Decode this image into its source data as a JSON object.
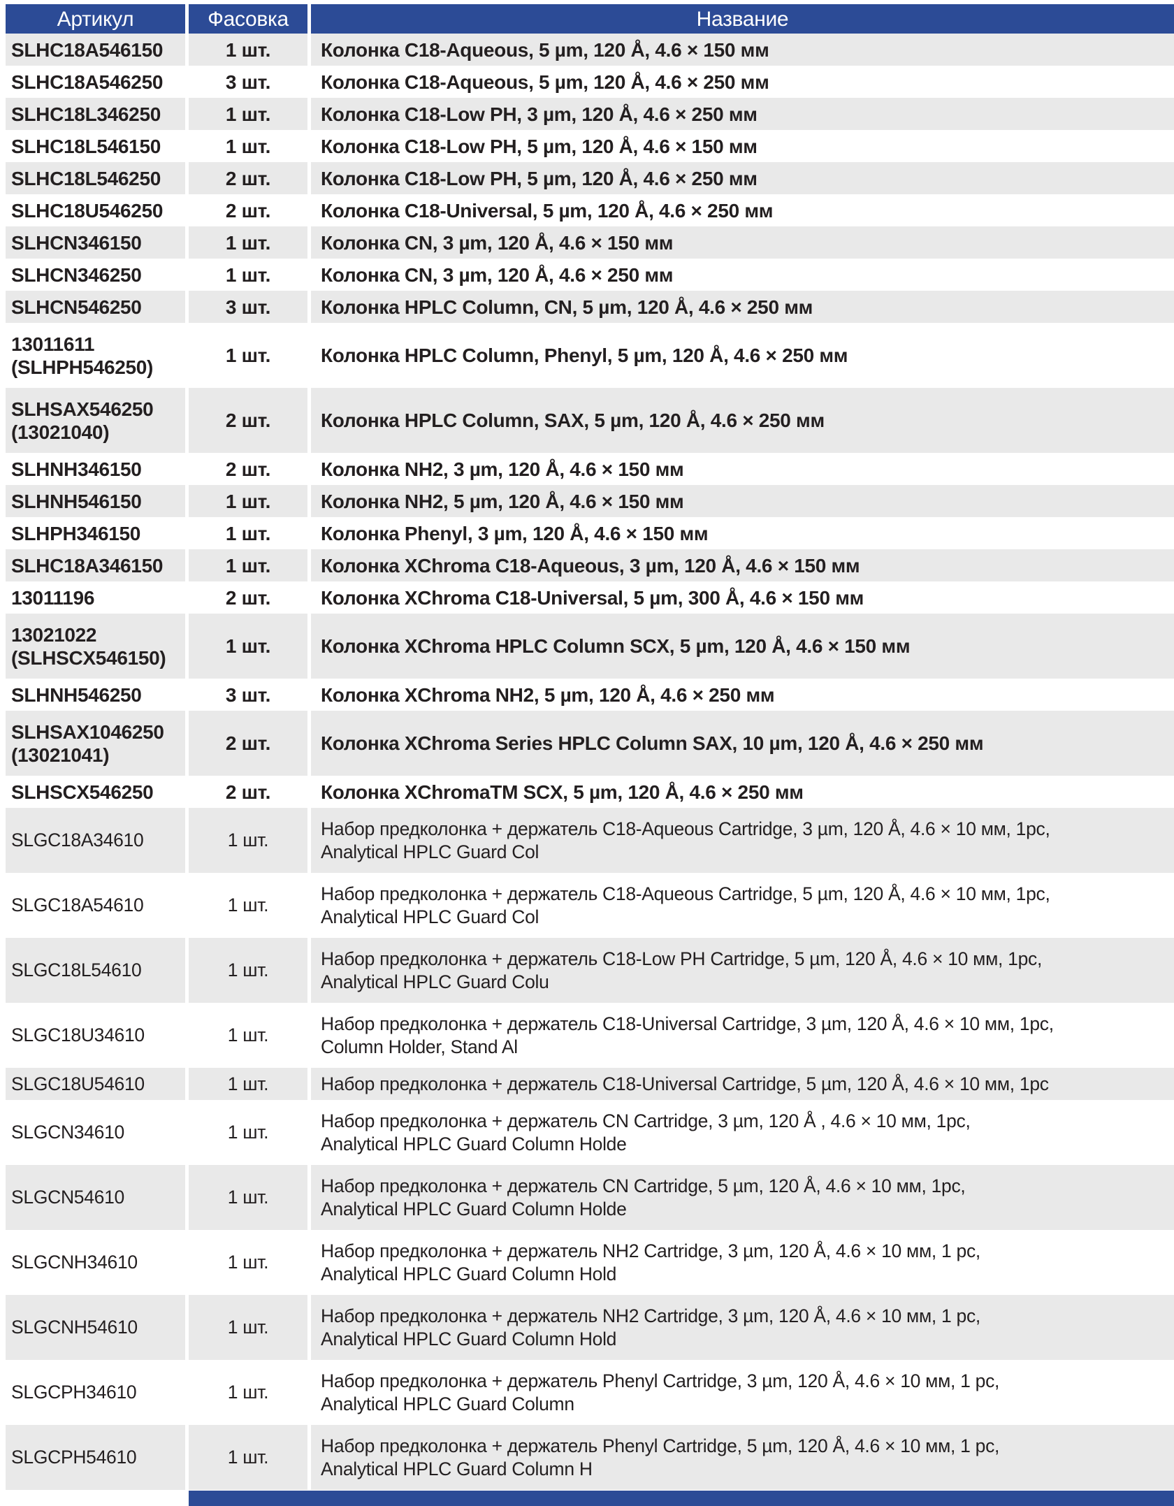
{
  "colors": {
    "header_bg": "#2c4b96",
    "row_alt_bg": "#e9e9e9",
    "text": "#231f20",
    "header_text": "#ffffff"
  },
  "header": {
    "article": "Артикул",
    "pack": "Фасовка",
    "name": "Название"
  },
  "groups": [
    {
      "weight": "bold",
      "rows": [
        {
          "article": "SLHC18A546150",
          "pack": "1 шт.",
          "name": "Колонка C18-Aqueous, 5 µm, 120 Å, 4.6 × 150 мм"
        },
        {
          "article": "SLHC18A546250",
          "pack": "3 шт.",
          "name": "Колонка C18-Aqueous, 5 µm, 120 Å, 4.6 × 250 мм"
        },
        {
          "article": "SLHC18L346250",
          "pack": "1 шт.",
          "name": "Колонка C18-Low PH, 3 µm, 120 Å, 4.6 × 250 мм"
        },
        {
          "article": "SLHC18L546150",
          "pack": "1 шт.",
          "name": "Колонка C18-Low PH, 5 µm, 120 Å, 4.6 × 150 мм"
        },
        {
          "article": "SLHC18L546250",
          "pack": "2 шт.",
          "name": "Колонка C18-Low PH, 5 µm, 120 Å, 4.6 × 250 мм"
        },
        {
          "article": "SLHC18U546250",
          "pack": "2 шт.",
          "name": "Колонка C18-Universal, 5 µm, 120 Å, 4.6 × 250 мм"
        },
        {
          "article": "SLHCN346150",
          "pack": "1 шт.",
          "name": "Колонка CN, 3 µm, 120 Å, 4.6 × 150 мм"
        },
        {
          "article": "SLHCN346250",
          "pack": "1 шт.",
          "name": "Колонка CN, 3 µm, 120 Å, 4.6 × 250 мм"
        },
        {
          "article": "SLHCN546250",
          "pack": "3 шт.",
          "name": "Колонка HPLC Column, CN, 5 µm, 120 Å, 4.6 × 250 мм"
        },
        {
          "article": "13011611\n(SLHPH546250)",
          "pack": "1 шт.",
          "name": "Колонка HPLC Column, Phenyl, 5 µm, 120 Å, 4.6 × 250 мм"
        },
        {
          "article": "SLHSAX546250\n(13021040)",
          "pack": "2 шт.",
          "name": "Колонка HPLC Column, SAX, 5 µm, 120 Å, 4.6 × 250 мм"
        },
        {
          "article": "SLHNH346150",
          "pack": "2 шт.",
          "name": "Колонка NH2, 3 µm, 120 Å, 4.6 × 150 мм"
        },
        {
          "article": "SLHNH546150",
          "pack": "1 шт.",
          "name": "Колонка NH2, 5 µm, 120 Å, 4.6 × 150 мм"
        },
        {
          "article": "SLHPH346150",
          "pack": "1 шт.",
          "name": "Колонка Phenyl, 3 µm, 120 Å, 4.6 × 150 мм"
        },
        {
          "article": "SLHC18A346150",
          "pack": "1 шт.",
          "name": "Колонка XChroma C18-Aqueous, 3 µm, 120 Å, 4.6 × 150 мм"
        },
        {
          "article": "13011196",
          "pack": "2 шт.",
          "name": "Колонка XChroma C18-Universal, 5 µm, 300 Å, 4.6 × 150 мм"
        },
        {
          "article": "13021022\n(SLHSCX546150)",
          "pack": "1 шт.",
          "name": "Колонка XChroma HPLC Column SCX, 5 µm, 120 Å, 4.6 × 150 мм"
        },
        {
          "article": "SLHNH546250",
          "pack": "3 шт.",
          "name": "Колонка XChroma NH2, 5 µm, 120 Å, 4.6 × 250 мм"
        },
        {
          "article": "SLHSAX1046250\n(13021041)",
          "pack": "2 шт.",
          "name": "Колонка XChroma Series HPLC Column SAX, 10 µm, 120 Å, 4.6 × 250 мм"
        },
        {
          "article": "SLHSCX546250",
          "pack": "2 шт.",
          "name": "Колонка XChromaTM SCX, 5 µm, 120 Å, 4.6 × 250 мм"
        }
      ]
    },
    {
      "weight": "regular",
      "rows": [
        {
          "article": "SLGC18A34610",
          "pack": "1 шт.",
          "name": "Набор предколонка + держатель C18-Aqueous Cartridge, 3 µm, 120 Å, 4.6 × 10 мм, 1pc,\nAnalytical HPLC Guard Col"
        },
        {
          "article": "SLGC18A54610",
          "pack": "1 шт.",
          "name": "Набор предколонка + держатель C18-Aqueous Cartridge, 5 µm, 120 Å, 4.6 × 10 мм, 1pc,\nAnalytical HPLC Guard Col"
        },
        {
          "article": "SLGC18L54610",
          "pack": "1 шт.",
          "name": "Набор предколонка + держатель C18-Low PH Cartridge, 5 µm, 120 Å, 4.6 × 10 мм, 1pc,\nAnalytical HPLC Guard Colu"
        },
        {
          "article": "SLGC18U34610",
          "pack": "1 шт.",
          "name": "Набор предколонка + держатель C18-Universal Cartridge, 3 µm, 120 Å, 4.6 × 10 мм, 1pc,\nColumn Holder, Stand Al"
        },
        {
          "article": "SLGC18U54610",
          "pack": "1 шт.",
          "name": "Набор предколонка + держатель C18-Universal Cartridge, 5 µm, 120 Å, 4.6 × 10 мм, 1pc"
        },
        {
          "article": "SLGCN34610",
          "pack": "1 шт.",
          "name": "Набор предколонка + держатель CN Cartridge, 3 µm, 120 Å , 4.6 × 10 мм, 1pc,\nAnalytical HPLC Guard Column Holde"
        },
        {
          "article": "SLGCN54610",
          "pack": "1 шт.",
          "name": "Набор предколонка + держатель CN Cartridge, 5 µm, 120 Å, 4.6 × 10 мм, 1pc,\nAnalytical HPLC Guard Column Holde"
        },
        {
          "article": "SLGCNH34610",
          "pack": "1 шт.",
          "name": "Набор предколонка + держатель NH2 Cartridge, 3 µm, 120 Å, 4.6 × 10 мм, 1 pc,\nAnalytical HPLC Guard Column Hold"
        },
        {
          "article": "SLGCNH54610",
          "pack": "1 шт.",
          "name": "Набор предколонка + держатель NH2 Cartridge, 3 µm, 120 Å, 4.6 × 10 мм, 1 pc,\nAnalytical HPLC Guard Column Hold"
        },
        {
          "article": "SLGCPH34610",
          "pack": "1 шт.",
          "name": "Набор предколонка + держатель Phenyl Cartridge, 3 µm, 120 Å, 4.6 × 10 мм, 1 pc,\nAnalytical HPLC Guard Column"
        },
        {
          "article": "SLGCPH54610",
          "pack": "1 шт.",
          "name": "Набор предколонка + держатель Phenyl Cartridge, 5 µm, 120 Å, 4.6 × 10 мм, 1 pc,\nAnalytical HPLC Guard Column H"
        }
      ]
    }
  ]
}
